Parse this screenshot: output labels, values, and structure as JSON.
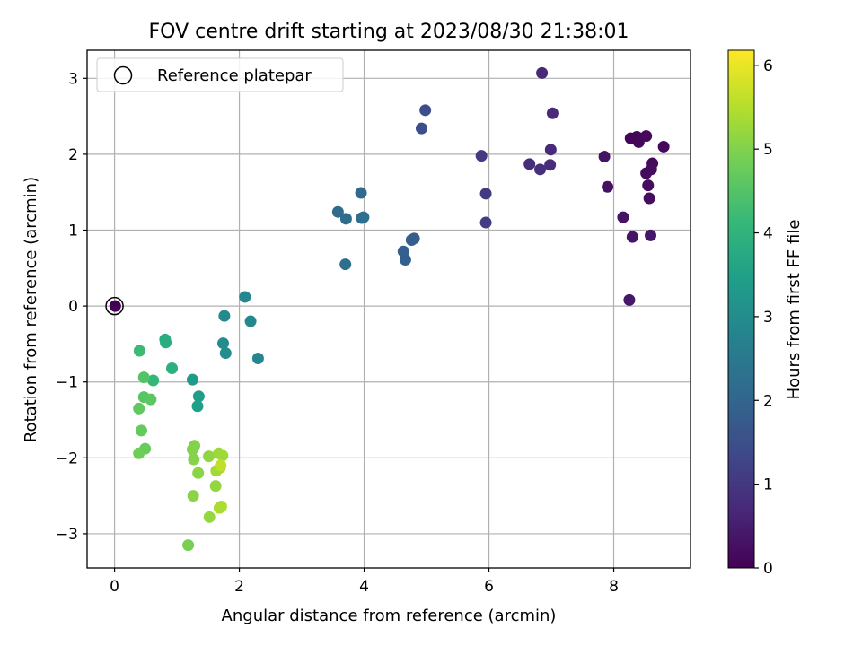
{
  "chart_data": {
    "type": "scatter",
    "title": "FOV centre drift starting at 2023/08/30 21:38:01",
    "xlabel": "Angular distance from reference (arcmin)",
    "ylabel": "Rotation from reference (arcmin)",
    "xlim": [
      -0.44,
      9.23
    ],
    "ylim": [
      -3.45,
      3.37
    ],
    "x_ticks": [
      0,
      2,
      4,
      6,
      8
    ],
    "y_ticks": [
      -3,
      -2,
      -1,
      0,
      1,
      2,
      3
    ],
    "x_tick_labels": [
      "0",
      "2",
      "4",
      "6",
      "8"
    ],
    "y_tick_labels": [
      "−3",
      "−2",
      "−1",
      "0",
      "1",
      "2",
      "3"
    ],
    "grid": true,
    "legend": {
      "placement": "top-left",
      "entries": [
        {
          "label": "Reference platepar",
          "marker": "open-circle",
          "color": "#000000"
        }
      ]
    },
    "colorbar": {
      "label": "Hours from first FF file",
      "cmap": "viridis",
      "range": [
        0,
        6.18
      ],
      "ticks": [
        0,
        1,
        2,
        3,
        4,
        5,
        6
      ],
      "tick_labels": [
        "0",
        "1",
        "2",
        "3",
        "4",
        "5",
        "6"
      ]
    },
    "reference_point": {
      "x": 0,
      "y": 0
    },
    "points": [
      {
        "x": 0.01,
        "y": 0.0,
        "t": 0.0
      },
      {
        "x": 8.27,
        "y": 2.21,
        "t": 0.05
      },
      {
        "x": 8.37,
        "y": 2.23,
        "t": 0.08
      },
      {
        "x": 8.4,
        "y": 2.16,
        "t": 0.1
      },
      {
        "x": 8.52,
        "y": 2.24,
        "t": 0.12
      },
      {
        "x": 8.8,
        "y": 2.1,
        "t": 0.14
      },
      {
        "x": 8.62,
        "y": 1.88,
        "t": 0.16
      },
      {
        "x": 8.52,
        "y": 1.75,
        "t": 0.18
      },
      {
        "x": 8.6,
        "y": 1.8,
        "t": 0.2
      },
      {
        "x": 8.55,
        "y": 1.59,
        "t": 0.22
      },
      {
        "x": 8.57,
        "y": 1.42,
        "t": 0.24
      },
      {
        "x": 7.9,
        "y": 1.57,
        "t": 0.28
      },
      {
        "x": 7.85,
        "y": 1.97,
        "t": 0.3
      },
      {
        "x": 8.15,
        "y": 1.17,
        "t": 0.33
      },
      {
        "x": 8.3,
        "y": 0.91,
        "t": 0.36
      },
      {
        "x": 8.59,
        "y": 0.93,
        "t": 0.38
      },
      {
        "x": 8.25,
        "y": 0.08,
        "t": 0.4
      },
      {
        "x": 6.85,
        "y": 3.07,
        "t": 0.7
      },
      {
        "x": 7.02,
        "y": 2.54,
        "t": 0.72
      },
      {
        "x": 6.99,
        "y": 2.06,
        "t": 0.75
      },
      {
        "x": 6.98,
        "y": 1.86,
        "t": 0.78
      },
      {
        "x": 6.65,
        "y": 1.87,
        "t": 0.8
      },
      {
        "x": 6.82,
        "y": 1.8,
        "t": 0.82
      },
      {
        "x": 5.88,
        "y": 1.98,
        "t": 1.05
      },
      {
        "x": 5.95,
        "y": 1.48,
        "t": 1.08
      },
      {
        "x": 5.95,
        "y": 1.1,
        "t": 1.1
      },
      {
        "x": 4.98,
        "y": 2.58,
        "t": 1.45
      },
      {
        "x": 4.92,
        "y": 2.34,
        "t": 1.48
      },
      {
        "x": 4.8,
        "y": 0.89,
        "t": 1.8
      },
      {
        "x": 4.76,
        "y": 0.87,
        "t": 1.82
      },
      {
        "x": 4.63,
        "y": 0.72,
        "t": 1.85
      },
      {
        "x": 4.66,
        "y": 0.61,
        "t": 1.88
      },
      {
        "x": 3.95,
        "y": 1.49,
        "t": 2.1
      },
      {
        "x": 3.58,
        "y": 1.24,
        "t": 2.15
      },
      {
        "x": 3.71,
        "y": 1.15,
        "t": 2.18
      },
      {
        "x": 3.96,
        "y": 1.16,
        "t": 2.2
      },
      {
        "x": 3.99,
        "y": 1.17,
        "t": 2.22
      },
      {
        "x": 3.7,
        "y": 0.55,
        "t": 2.25
      },
      {
        "x": 2.09,
        "y": 0.12,
        "t": 2.85
      },
      {
        "x": 1.76,
        "y": -0.13,
        "t": 2.95
      },
      {
        "x": 2.18,
        "y": -0.2,
        "t": 2.9
      },
      {
        "x": 2.3,
        "y": -0.69,
        "t": 2.88
      },
      {
        "x": 1.74,
        "y": -0.49,
        "t": 3.0
      },
      {
        "x": 1.78,
        "y": -0.62,
        "t": 3.05
      },
      {
        "x": 1.25,
        "y": -0.97,
        "t": 3.35
      },
      {
        "x": 1.35,
        "y": -1.19,
        "t": 3.4
      },
      {
        "x": 1.33,
        "y": -1.32,
        "t": 3.45
      },
      {
        "x": 0.81,
        "y": -0.44,
        "t": 3.8
      },
      {
        "x": 0.82,
        "y": -0.48,
        "t": 3.85
      },
      {
        "x": 0.92,
        "y": -0.82,
        "t": 3.9
      },
      {
        "x": 0.62,
        "y": -0.98,
        "t": 4.1
      },
      {
        "x": 0.4,
        "y": -0.59,
        "t": 4.2
      },
      {
        "x": 0.47,
        "y": -0.94,
        "t": 4.5
      },
      {
        "x": 0.47,
        "y": -1.2,
        "t": 4.55
      },
      {
        "x": 0.58,
        "y": -1.23,
        "t": 4.6
      },
      {
        "x": 0.39,
        "y": -1.35,
        "t": 4.65
      },
      {
        "x": 0.43,
        "y": -1.64,
        "t": 4.7
      },
      {
        "x": 0.49,
        "y": -1.88,
        "t": 4.75
      },
      {
        "x": 0.39,
        "y": -1.94,
        "t": 4.8
      },
      {
        "x": 1.25,
        "y": -1.89,
        "t": 5.0
      },
      {
        "x": 1.28,
        "y": -1.84,
        "t": 5.02
      },
      {
        "x": 1.27,
        "y": -2.02,
        "t": 5.05
      },
      {
        "x": 1.34,
        "y": -2.2,
        "t": 5.08
      },
      {
        "x": 1.26,
        "y": -2.5,
        "t": 5.1
      },
      {
        "x": 1.18,
        "y": -3.15,
        "t": 4.9
      },
      {
        "x": 1.51,
        "y": -1.98,
        "t": 5.15
      },
      {
        "x": 1.62,
        "y": -2.37,
        "t": 5.18
      },
      {
        "x": 1.52,
        "y": -2.78,
        "t": 5.2
      },
      {
        "x": 1.67,
        "y": -1.94,
        "t": 5.25
      },
      {
        "x": 1.73,
        "y": -1.97,
        "t": 5.28
      },
      {
        "x": 1.63,
        "y": -2.17,
        "t": 5.3
      },
      {
        "x": 1.69,
        "y": -2.13,
        "t": 5.35
      },
      {
        "x": 1.71,
        "y": -2.64,
        "t": 5.4
      },
      {
        "x": 1.68,
        "y": -2.66,
        "t": 5.42
      },
      {
        "x": 1.7,
        "y": -2.1,
        "t": 5.6
      }
    ]
  }
}
